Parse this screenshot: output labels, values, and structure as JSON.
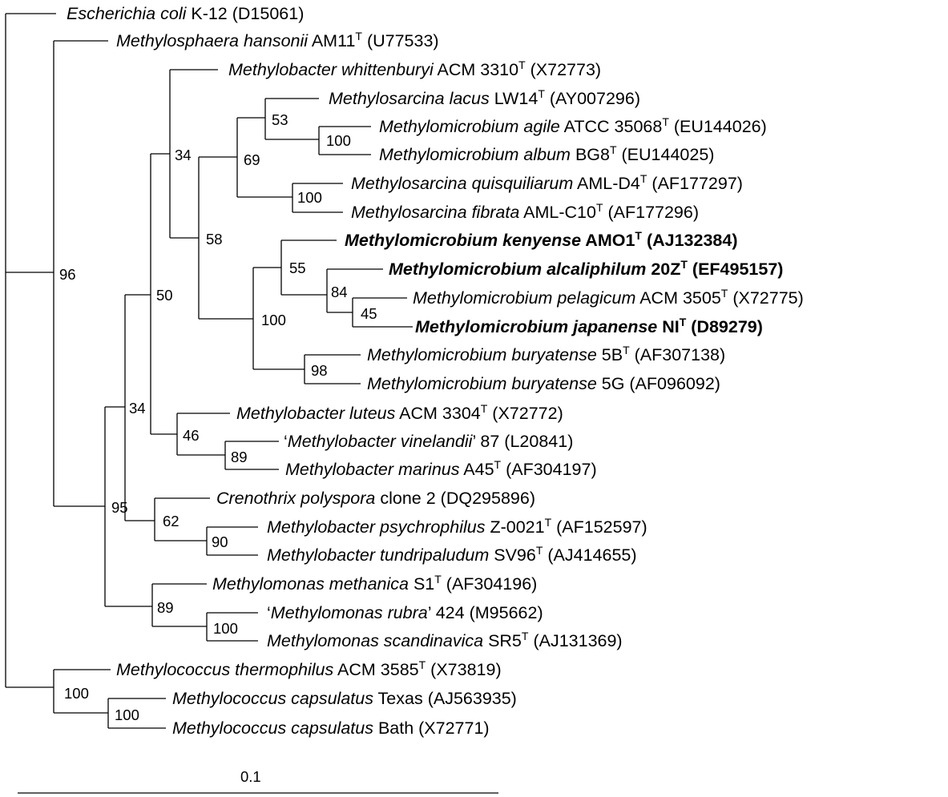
{
  "taxa": [
    {
      "genus": "Escherichia coli",
      "strain": " K-12",
      "type": false,
      "acc": " (D15061)",
      "bold": false
    },
    {
      "genus": "Methylosphaera hansonii",
      "strain": " AM11",
      "type": true,
      "acc": " (U77533)",
      "bold": false
    },
    {
      "genus": "Methylobacter whittenburyi",
      "strain": " ACM 3310",
      "type": true,
      "acc": " (X72773)",
      "bold": false
    },
    {
      "genus": "Methylosarcina lacus",
      "strain": " LW14",
      "type": true,
      "acc": " (AY007296)",
      "bold": false
    },
    {
      "genus": "Methylomicrobium agile",
      "strain": " ATCC 35068",
      "type": true,
      "acc": " (EU144026)",
      "bold": false
    },
    {
      "genus": "Methylomicrobium album",
      "strain": " BG8",
      "type": true,
      "acc": " (EU144025)",
      "bold": false
    },
    {
      "genus": "Methylosarcina quisquiliarum",
      "strain": " AML-D4",
      "type": true,
      "acc": " (AF177297)",
      "bold": false
    },
    {
      "genus": "Methylosarcina fibrata",
      "strain": " AML-C10",
      "type": true,
      "acc": " (AF177296)",
      "bold": false
    },
    {
      "genus": "Methylomicrobium kenyense",
      "strain": " AMO1",
      "type": true,
      "acc": " (AJ132384)",
      "bold": true
    },
    {
      "genus": "Methylomicrobium alcaliphilum",
      "strain": " 20Z",
      "type": true,
      "acc": " (EF495157)",
      "bold": true
    },
    {
      "genus": "Methylomicrobium pelagicum",
      "strain": " ACM 3505",
      "type": true,
      "acc": " (X72775)",
      "bold": false
    },
    {
      "genus": "Methylomicrobium japanense",
      "strain": " NI",
      "type": true,
      "acc": " (D89279)",
      "bold": true
    },
    {
      "genus": "Methylomicrobium buryatense",
      "strain": " 5B",
      "type": true,
      "acc": " (AF307138)",
      "bold": false
    },
    {
      "genus": "Methylomicrobium buryatense",
      "strain": " 5G",
      "type": false,
      "acc": " (AF096092)",
      "bold": false
    },
    {
      "genus": "Methylobacter luteus",
      "strain": " ACM 3304",
      "type": true,
      "acc": " (X72772)",
      "bold": false
    },
    {
      "genus": "Methylobacter vinelandii",
      "strain": " 87",
      "type": false,
      "acc": " (L20841)",
      "bold": false,
      "quoted": true
    },
    {
      "genus": "Methylobacter marinus",
      "strain": " A45",
      "type": true,
      "acc": " (AF304197)",
      "bold": false
    },
    {
      "genus": "Crenothrix polyspora",
      "strain": " clone 2",
      "type": false,
      "acc": " (DQ295896)",
      "bold": false
    },
    {
      "genus": "Methylobacter psychrophilus",
      "strain": " Z-0021",
      "type": true,
      "acc": " (AF152597)",
      "bold": false
    },
    {
      "genus": "Methylobacter tundripaludum",
      "strain": " SV96",
      "type": true,
      "acc": " (AJ414655)",
      "bold": false
    },
    {
      "genus": "Methylomonas methanica",
      "strain": " S1",
      "type": true,
      "acc": " (AF304196)",
      "bold": false
    },
    {
      "genus": "Methylomonas rubra",
      "strain": " 424",
      "type": false,
      "acc": " (M95662)",
      "bold": false,
      "quoted": true
    },
    {
      "genus": "Methylomonas scandinavica",
      "strain": " SR5",
      "type": true,
      "acc": " (AJ131369)",
      "bold": false
    },
    {
      "genus": "Methylococcus thermophilus",
      "strain": " ACM 3585",
      "type": true,
      "acc": " (X73819)",
      "bold": false
    },
    {
      "genus": "Methylococcus capsulatus",
      "strain": " Texas",
      "type": false,
      "acc": " (AJ563935)",
      "bold": false
    },
    {
      "genus": "Methylococcus capsulatus",
      "strain": " Bath",
      "type": false,
      "acc": " (X72771)",
      "bold": false
    }
  ],
  "bootstrap": [
    "96",
    "34",
    "53",
    "100",
    "69",
    "100",
    "58",
    "55",
    "84",
    "45",
    "100",
    "98",
    "50",
    "34",
    "46",
    "89",
    "95",
    "62",
    "90",
    "89",
    "100",
    "100",
    "100"
  ],
  "scale": {
    "label": "0.1"
  },
  "symbols": {
    "type_superscript": "T",
    "open_quote": "‘",
    "close_quote": "’"
  }
}
